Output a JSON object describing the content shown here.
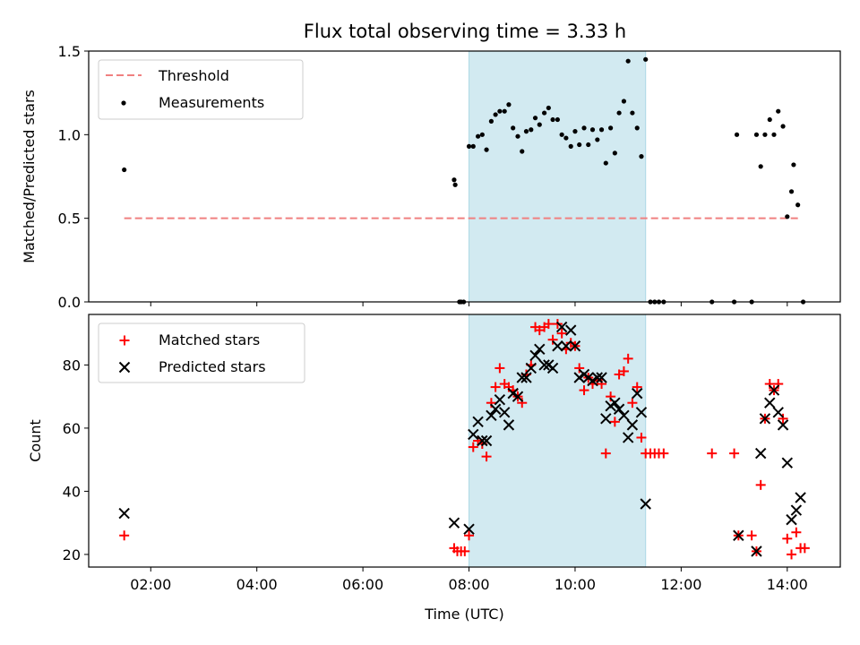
{
  "figure": {
    "title": "Flux total observing time = 3.33 h",
    "xlabel": "Time (UTC)"
  },
  "colors": {
    "threshold": "#f08080",
    "measurements": "#000000",
    "matched": "#ff0000",
    "predicted": "#000000",
    "highlight_fill": "#add8e6"
  },
  "chart_data": [
    {
      "type": "scatter",
      "ylabel": "Matched/Predicted stars",
      "xlim": [
        0.83,
        15.0
      ],
      "ylim": [
        0,
        1.5
      ],
      "yticks": [
        0.0,
        0.5,
        1.0,
        1.5
      ],
      "ytick_labels": [
        "0.0",
        "0.5",
        "1.0",
        "1.5"
      ],
      "highlight_span": [
        8.0,
        11.33
      ],
      "legend": {
        "position": "upper-left",
        "entries": [
          "Threshold",
          "Measurements"
        ]
      },
      "threshold": {
        "name": "Threshold",
        "y": 0.5,
        "x_range": [
          1.5,
          14.25
        ]
      },
      "series": [
        {
          "name": "Measurements",
          "marker": "dot",
          "points": [
            [
              1.5,
              0.79
            ],
            [
              7.72,
              0.73
            ],
            [
              7.74,
              0.7
            ],
            [
              7.82,
              0.0
            ],
            [
              7.85,
              0.0
            ],
            [
              7.9,
              0.0
            ],
            [
              8.0,
              0.93
            ],
            [
              8.08,
              0.93
            ],
            [
              8.17,
              0.99
            ],
            [
              8.25,
              1.0
            ],
            [
              8.33,
              0.91
            ],
            [
              8.42,
              1.08
            ],
            [
              8.5,
              1.12
            ],
            [
              8.58,
              1.14
            ],
            [
              8.67,
              1.14
            ],
            [
              8.75,
              1.18
            ],
            [
              8.83,
              1.04
            ],
            [
              8.92,
              0.99
            ],
            [
              9.0,
              0.9
            ],
            [
              9.08,
              1.02
            ],
            [
              9.17,
              1.03
            ],
            [
              9.25,
              1.1
            ],
            [
              9.33,
              1.06
            ],
            [
              9.42,
              1.13
            ],
            [
              9.5,
              1.16
            ],
            [
              9.58,
              1.09
            ],
            [
              9.67,
              1.09
            ],
            [
              9.75,
              1.0
            ],
            [
              9.83,
              0.98
            ],
            [
              9.92,
              0.93
            ],
            [
              10.0,
              1.02
            ],
            [
              10.08,
              0.94
            ],
            [
              10.17,
              1.04
            ],
            [
              10.25,
              0.94
            ],
            [
              10.33,
              1.03
            ],
            [
              10.42,
              0.97
            ],
            [
              10.5,
              1.03
            ],
            [
              10.58,
              0.83
            ],
            [
              10.67,
              1.04
            ],
            [
              10.75,
              0.89
            ],
            [
              10.83,
              1.13
            ],
            [
              10.92,
              1.2
            ],
            [
              11.0,
              1.44
            ],
            [
              11.08,
              1.13
            ],
            [
              11.17,
              1.04
            ],
            [
              11.25,
              0.87
            ],
            [
              11.33,
              1.45
            ],
            [
              11.42,
              0.0
            ],
            [
              11.5,
              0.0
            ],
            [
              11.58,
              0.0
            ],
            [
              11.67,
              0.0
            ],
            [
              12.58,
              0.0
            ],
            [
              13.0,
              0.0
            ],
            [
              13.05,
              1.0
            ],
            [
              13.33,
              0.0
            ],
            [
              13.42,
              1.0
            ],
            [
              13.5,
              0.81
            ],
            [
              13.58,
              1.0
            ],
            [
              13.67,
              1.09
            ],
            [
              13.75,
              1.0
            ],
            [
              13.83,
              1.14
            ],
            [
              13.92,
              1.05
            ],
            [
              14.0,
              0.51
            ],
            [
              14.08,
              0.66
            ],
            [
              14.12,
              0.82
            ],
            [
              14.2,
              0.58
            ],
            [
              14.3,
              0.0
            ]
          ]
        }
      ]
    },
    {
      "type": "scatter",
      "ylabel": "Count",
      "xlim": [
        0.83,
        15.0
      ],
      "ylim": [
        16,
        96
      ],
      "yticks": [
        20,
        40,
        60,
        80
      ],
      "ytick_labels": [
        "20",
        "40",
        "60",
        "80"
      ],
      "xticks": [
        2,
        4,
        6,
        8,
        10,
        12,
        14
      ],
      "xtick_labels": [
        "02:00",
        "04:00",
        "06:00",
        "08:00",
        "10:00",
        "12:00",
        "14:00"
      ],
      "highlight_span": [
        8.0,
        11.33
      ],
      "legend": {
        "position": "upper-left",
        "entries": [
          "Matched stars",
          "Predicted stars"
        ]
      },
      "series": [
        {
          "name": "Matched stars",
          "marker": "plus",
          "points": [
            [
              1.5,
              26
            ],
            [
              7.72,
              22
            ],
            [
              7.78,
              21
            ],
            [
              7.85,
              21
            ],
            [
              7.92,
              21
            ],
            [
              8.0,
              26
            ],
            [
              8.08,
              54
            ],
            [
              8.17,
              56
            ],
            [
              8.25,
              55
            ],
            [
              8.33,
              51
            ],
            [
              8.42,
              68
            ],
            [
              8.5,
              73
            ],
            [
              8.58,
              79
            ],
            [
              8.67,
              74
            ],
            [
              8.75,
              73
            ],
            [
              8.83,
              72
            ],
            [
              8.92,
              70
            ],
            [
              9.0,
              68
            ],
            [
              9.08,
              77
            ],
            [
              9.17,
              80
            ],
            [
              9.25,
              92
            ],
            [
              9.33,
              91
            ],
            [
              9.42,
              92
            ],
            [
              9.5,
              93
            ],
            [
              9.58,
              88
            ],
            [
              9.67,
              93
            ],
            [
              9.75,
              90
            ],
            [
              9.83,
              85
            ],
            [
              9.92,
              87
            ],
            [
              10.0,
              86
            ],
            [
              10.08,
              79
            ],
            [
              10.17,
              72
            ],
            [
              10.25,
              76
            ],
            [
              10.33,
              74
            ],
            [
              10.42,
              75
            ],
            [
              10.5,
              74
            ],
            [
              10.58,
              52
            ],
            [
              10.67,
              70
            ],
            [
              10.75,
              62
            ],
            [
              10.83,
              77
            ],
            [
              10.92,
              78
            ],
            [
              11.0,
              82
            ],
            [
              11.08,
              68
            ],
            [
              11.17,
              73
            ],
            [
              11.25,
              57
            ],
            [
              11.33,
              52
            ],
            [
              11.42,
              52
            ],
            [
              11.5,
              52
            ],
            [
              11.58,
              52
            ],
            [
              11.67,
              52
            ],
            [
              12.58,
              52
            ],
            [
              13.0,
              52
            ],
            [
              13.08,
              26
            ],
            [
              13.33,
              26
            ],
            [
              13.42,
              21
            ],
            [
              13.5,
              42
            ],
            [
              13.58,
              63
            ],
            [
              13.67,
              74
            ],
            [
              13.75,
              72
            ],
            [
              13.83,
              74
            ],
            [
              13.92,
              63
            ],
            [
              14.0,
              25
            ],
            [
              14.08,
              20
            ],
            [
              14.17,
              27
            ],
            [
              14.25,
              22
            ],
            [
              14.33,
              22
            ]
          ]
        },
        {
          "name": "Predicted stars",
          "marker": "x",
          "points": [
            [
              1.5,
              33
            ],
            [
              7.72,
              30
            ],
            [
              8.0,
              28
            ],
            [
              8.08,
              58
            ],
            [
              8.17,
              62
            ],
            [
              8.25,
              56
            ],
            [
              8.33,
              56
            ],
            [
              8.42,
              64
            ],
            [
              8.5,
              66
            ],
            [
              8.58,
              69
            ],
            [
              8.67,
              65
            ],
            [
              8.75,
              61
            ],
            [
              8.83,
              71
            ],
            [
              8.92,
              70
            ],
            [
              9.0,
              76
            ],
            [
              9.08,
              76
            ],
            [
              9.17,
              79
            ],
            [
              9.25,
              83
            ],
            [
              9.33,
              85
            ],
            [
              9.42,
              80
            ],
            [
              9.5,
              80
            ],
            [
              9.58,
              79
            ],
            [
              9.67,
              86
            ],
            [
              9.75,
              92
            ],
            [
              9.83,
              86
            ],
            [
              9.92,
              91
            ],
            [
              10.0,
              86
            ],
            [
              10.08,
              76
            ],
            [
              10.17,
              77
            ],
            [
              10.25,
              76
            ],
            [
              10.33,
              75
            ],
            [
              10.42,
              76
            ],
            [
              10.5,
              76
            ],
            [
              10.58,
              63
            ],
            [
              10.67,
              67
            ],
            [
              10.75,
              68
            ],
            [
              10.83,
              66
            ],
            [
              10.92,
              64
            ],
            [
              11.0,
              57
            ],
            [
              11.08,
              61
            ],
            [
              11.17,
              71
            ],
            [
              11.25,
              65
            ],
            [
              11.33,
              36
            ],
            [
              13.08,
              26
            ],
            [
              13.42,
              21
            ],
            [
              13.5,
              52
            ],
            [
              13.58,
              63
            ],
            [
              13.67,
              68
            ],
            [
              13.75,
              72
            ],
            [
              13.83,
              65
            ],
            [
              13.92,
              61
            ],
            [
              14.0,
              49
            ],
            [
              14.08,
              31
            ],
            [
              14.17,
              34
            ],
            [
              14.25,
              38
            ]
          ]
        }
      ]
    }
  ]
}
